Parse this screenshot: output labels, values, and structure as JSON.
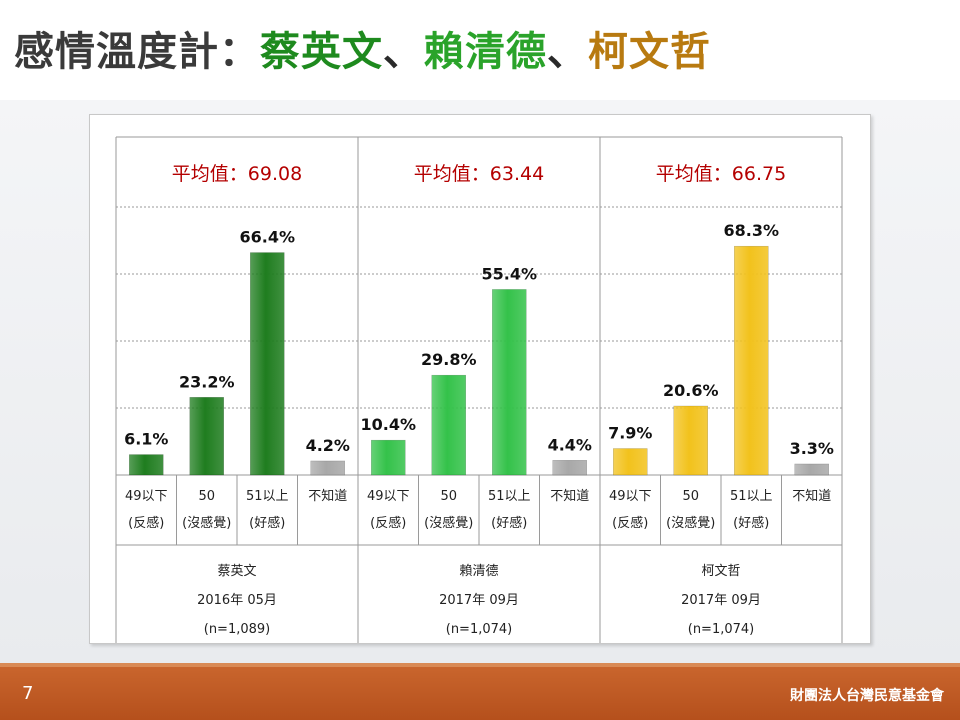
{
  "slide": {
    "title_prefix": "感情溫度計：",
    "title_names": [
      {
        "text": "蔡英文",
        "color": "#1e8a1e"
      },
      {
        "text": "、",
        "color": "#2a2a2a"
      },
      {
        "text": "賴清德",
        "color": "#2aa32a"
      },
      {
        "text": "、",
        "color": "#2a2a2a"
      },
      {
        "text": "柯文哲",
        "color": "#b87a10"
      }
    ],
    "page_number": "7",
    "org": "財團法人台灣民意基金會"
  },
  "colors": {
    "tsai": "#1f7d1f",
    "lai": "#34c24a",
    "ko": "#f2c21c",
    "unknown": "#a8a8a8",
    "average_text": "#b40000"
  },
  "chart_data": {
    "type": "bar",
    "ylim": [
      0,
      80
    ],
    "grid": true,
    "value_suffix": "%",
    "groups": [
      {
        "average_label": "平均值：69.08",
        "name": "蔡英文",
        "date": "2016年 05月",
        "sample": "(n=1,089)",
        "color_key": "tsai",
        "categories": [
          {
            "line1": "49以下",
            "line2": "(反感)"
          },
          {
            "line1": "50",
            "line2": "(沒感覺)"
          },
          {
            "line1": "51以上",
            "line2": "(好感)"
          },
          {
            "line1": "不知道",
            "line2": ""
          }
        ],
        "values": [
          6.1,
          23.2,
          66.4,
          4.2
        ]
      },
      {
        "average_label": "平均值：63.44",
        "name": "賴清德",
        "date": "2017年 09月",
        "sample": "(n=1,074)",
        "color_key": "lai",
        "categories": [
          {
            "line1": "49以下",
            "line2": "(反感)"
          },
          {
            "line1": "50",
            "line2": "(沒感覺)"
          },
          {
            "line1": "51以上",
            "line2": "(好感)"
          },
          {
            "line1": "不知道",
            "line2": ""
          }
        ],
        "values": [
          10.4,
          29.8,
          55.4,
          4.4
        ]
      },
      {
        "average_label": "平均值：66.75",
        "name": "柯文哲",
        "date": "2017年 09月",
        "sample": "(n=1,074)",
        "color_key": "ko",
        "categories": [
          {
            "line1": "49以下",
            "line2": "(反感)"
          },
          {
            "line1": "50",
            "line2": "(沒感覺)"
          },
          {
            "line1": "51以上",
            "line2": "(好感)"
          },
          {
            "line1": "不知道",
            "line2": ""
          }
        ],
        "values": [
          7.9,
          20.6,
          68.3,
          3.3
        ]
      }
    ]
  }
}
